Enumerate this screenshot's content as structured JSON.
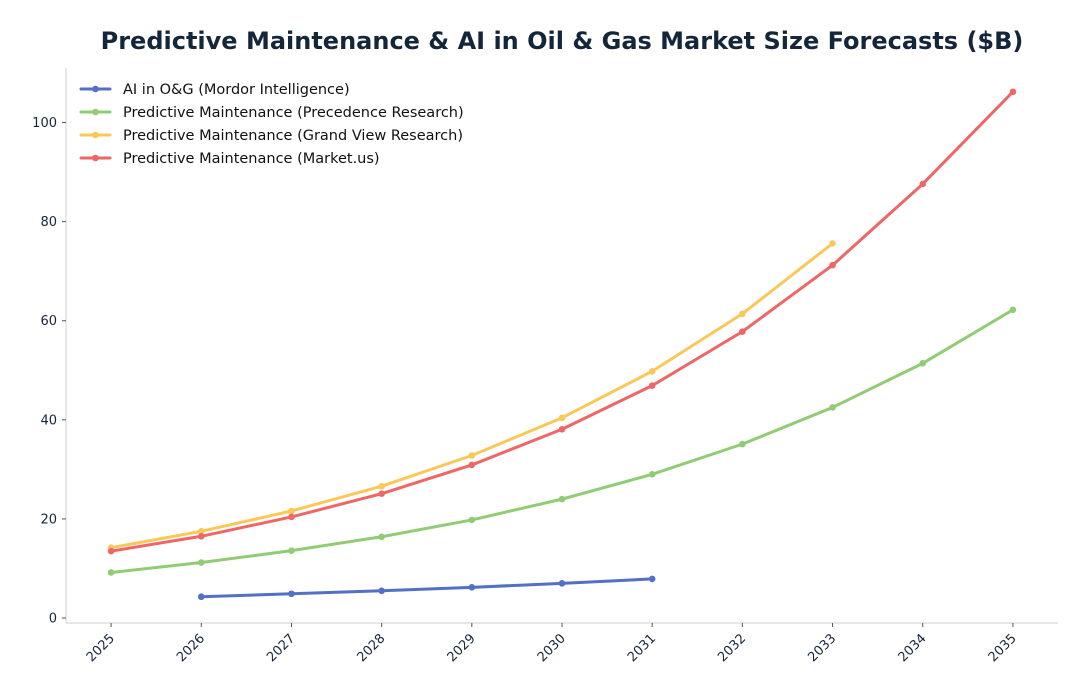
{
  "chart_data": {
    "type": "line",
    "title": "Predictive Maintenance & AI in Oil & Gas Market Size Forecasts ($B)",
    "xlabel": "",
    "ylabel": "",
    "x": [
      2025,
      2026,
      2027,
      2028,
      2029,
      2030,
      2031,
      2032,
      2033,
      2034,
      2035
    ],
    "x_tick_labels": [
      "2025",
      "2026",
      "2027",
      "2028",
      "2029",
      "2030",
      "2031",
      "2032",
      "2033",
      "2034",
      "2035"
    ],
    "y_ticks": [
      0,
      20,
      40,
      60,
      80,
      100
    ],
    "y_tick_labels": [
      "0",
      "20",
      "40",
      "60",
      "80",
      "100"
    ],
    "ylim": [
      -1,
      111
    ],
    "xlim": [
      2024.5,
      2035.5
    ],
    "grid": false,
    "legend_position": "top-left",
    "series": [
      {
        "name": "AI in O&G (Mordor Intelligence)",
        "color": "#5470c6",
        "x": [
          2026,
          2027,
          2028,
          2029,
          2030,
          2031
        ],
        "y": [
          4.3,
          4.9,
          5.5,
          6.2,
          7.0,
          7.9
        ]
      },
      {
        "name": "Predictive Maintenance (Precedence Research)",
        "color": "#91cc75",
        "x": [
          2025,
          2026,
          2027,
          2028,
          2029,
          2030,
          2031,
          2032,
          2033,
          2034,
          2035
        ],
        "y": [
          9.2,
          11.2,
          13.6,
          16.4,
          19.8,
          24.0,
          29.0,
          35.1,
          42.5,
          51.4,
          62.2
        ]
      },
      {
        "name": "Predictive Maintenance (Grand View Research)",
        "color": "#fac858",
        "x": [
          2025,
          2026,
          2027,
          2028,
          2029,
          2030,
          2031,
          2032,
          2033
        ],
        "y": [
          14.2,
          17.5,
          21.6,
          26.6,
          32.8,
          40.4,
          49.8,
          61.4,
          75.6
        ]
      },
      {
        "name": "Predictive Maintenance (Market.us)",
        "color": "#ee6666",
        "x": [
          2025,
          2026,
          2027,
          2028,
          2029,
          2030,
          2031,
          2032,
          2033,
          2034,
          2035
        ],
        "y": [
          13.5,
          16.5,
          20.4,
          25.1,
          30.9,
          38.1,
          46.9,
          57.8,
          71.2,
          87.6,
          106.2
        ]
      }
    ]
  }
}
